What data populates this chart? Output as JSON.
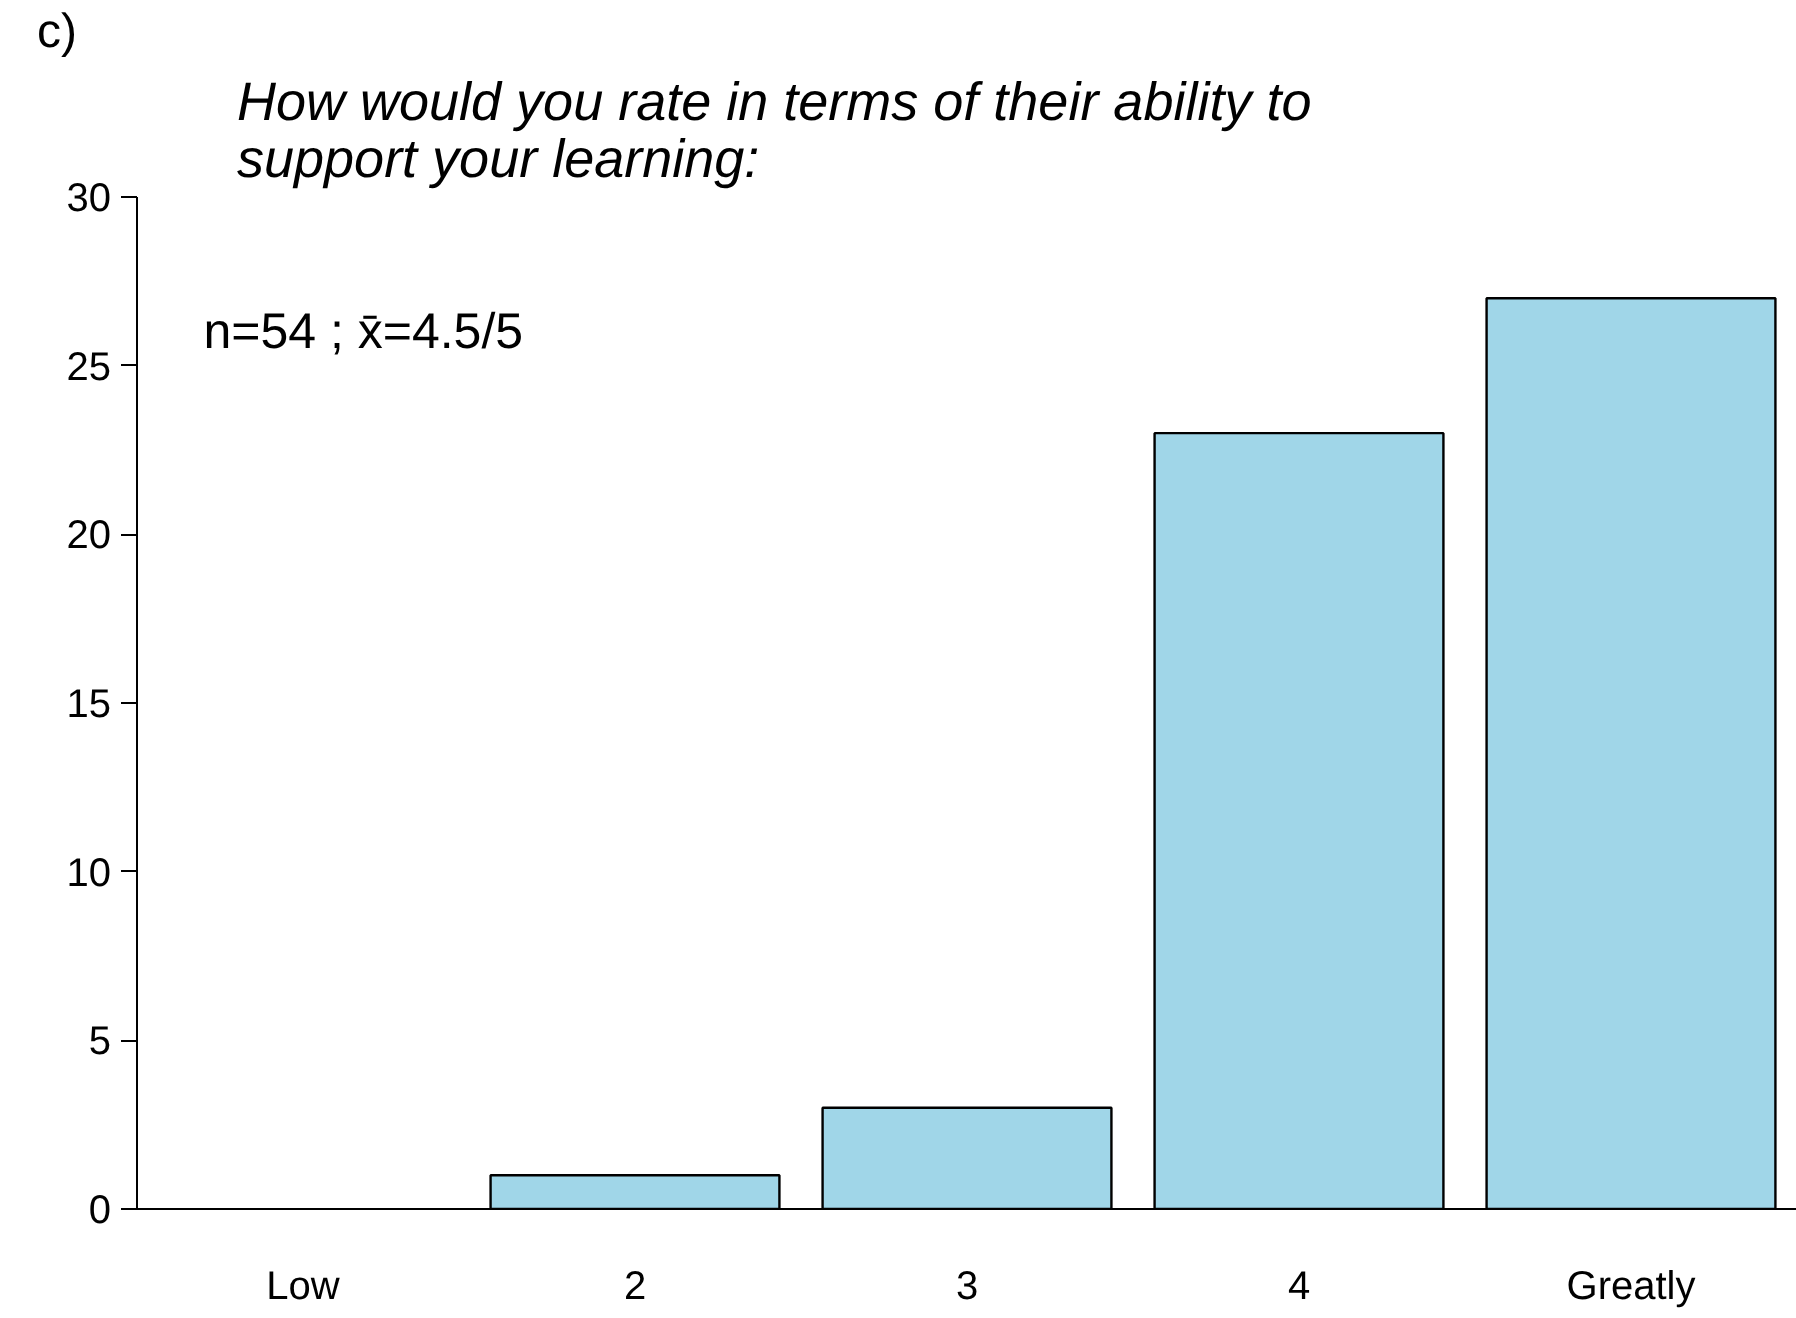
{
  "chart_data": {
    "type": "bar",
    "title": "How would you rate in terms of their ability to support your learning:",
    "categories": [
      "Low",
      "2",
      "3",
      "4",
      "Greatly"
    ],
    "values": [
      0,
      1,
      3,
      23,
      27
    ],
    "color": "#a0d6e8",
    "ylim": [
      0,
      30
    ],
    "yticks": [
      0,
      5,
      10,
      15,
      20,
      25,
      30
    ],
    "grid": false,
    "annotations": [
      "c)",
      "n=54 ; x̄=4.5/5"
    ]
  }
}
